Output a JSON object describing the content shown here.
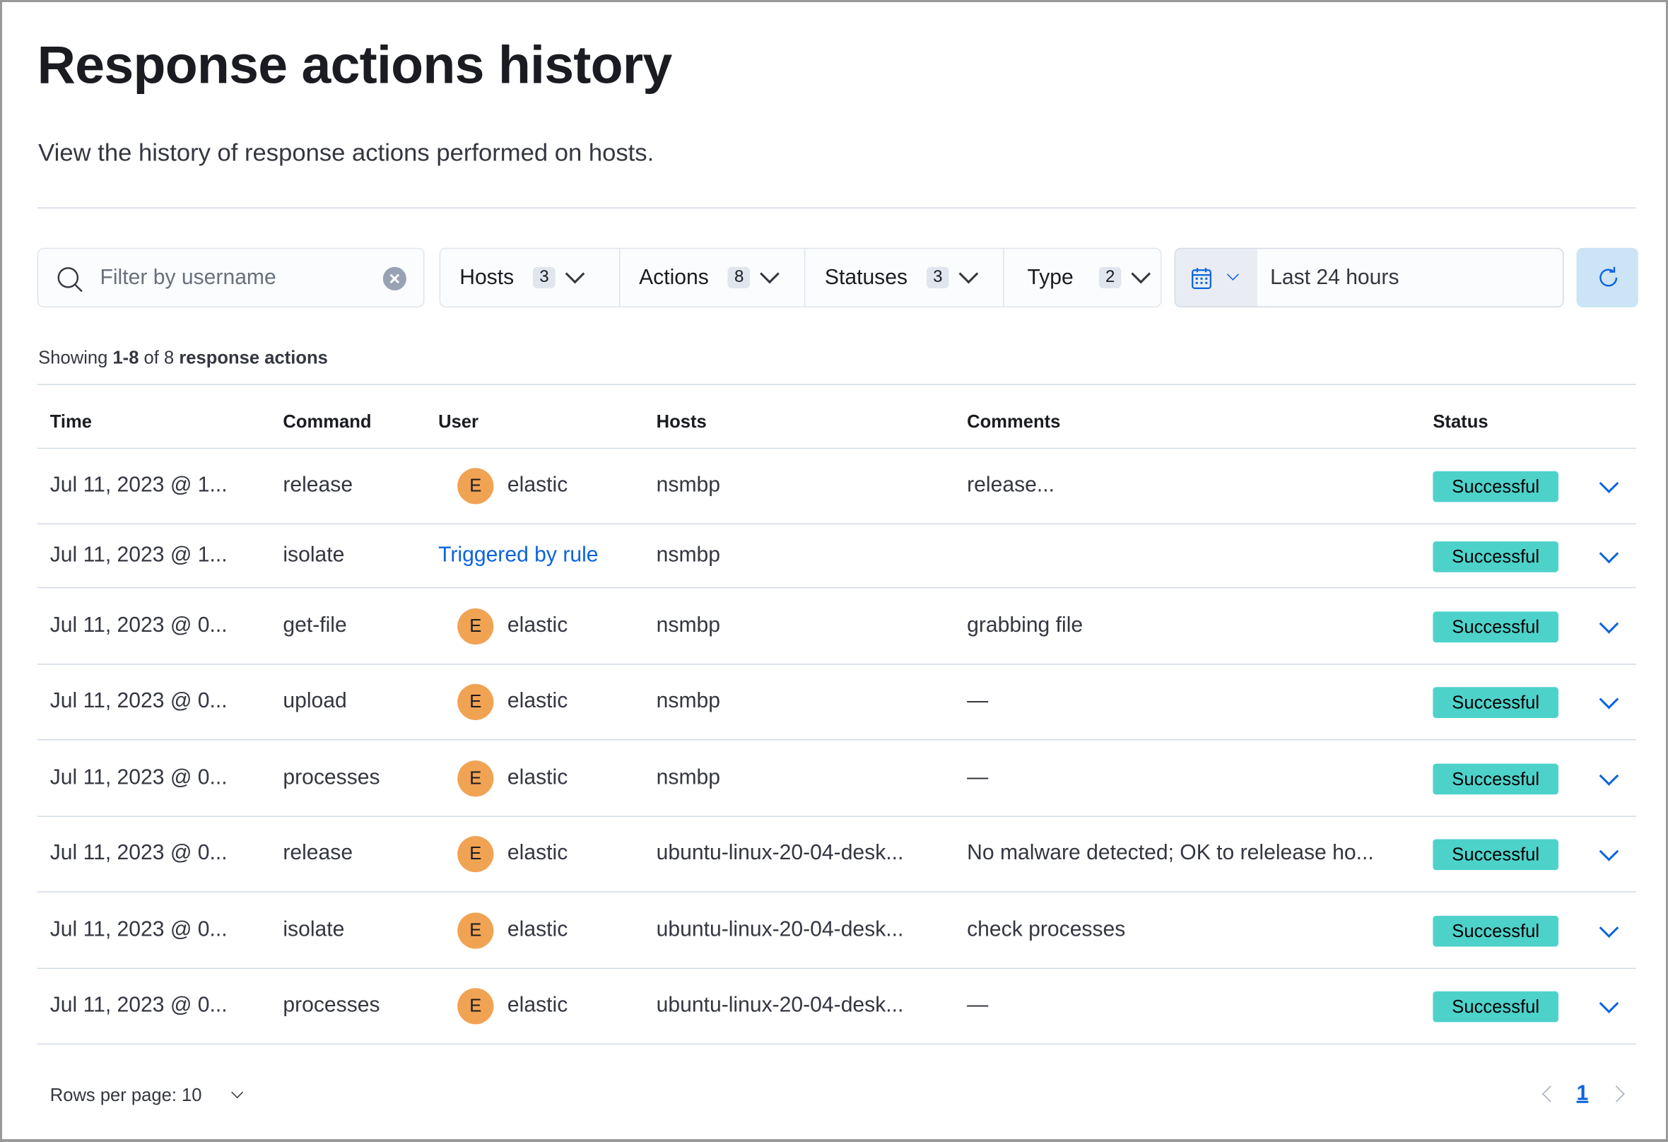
{
  "page": {
    "title": "Response actions history",
    "subtitle": "View the history of response actions performed on hosts."
  },
  "search": {
    "placeholder": "Filter by username",
    "icon": "search-icon"
  },
  "filters": [
    {
      "label": "Hosts",
      "count": "3"
    },
    {
      "label": "Actions",
      "count": "8"
    },
    {
      "label": "Statuses",
      "count": "3"
    },
    {
      "label": "Type",
      "count": "2"
    }
  ],
  "date_picker": {
    "value": "Last 24 hours",
    "icon": "calendar-icon"
  },
  "showing": {
    "prefix": "Showing ",
    "range": "1-8",
    "of": " of 8 ",
    "noun": "response actions"
  },
  "table": {
    "columns": [
      "Time",
      "Command",
      "User",
      "Hosts",
      "Comments",
      "Status"
    ],
    "rows": [
      {
        "time": "Jul 11, 2023 @ 1...",
        "command": "release",
        "avatar": "E",
        "user": "elastic",
        "host": "nsmbp",
        "comment": "release...",
        "status": "Successful"
      },
      {
        "time": "Jul 11, 2023 @ 1...",
        "command": "isolate",
        "avatar": "",
        "user": "Triggered by rule",
        "host": "nsmbp",
        "comment": "",
        "status": "Successful"
      },
      {
        "time": "Jul 11, 2023 @ 0...",
        "command": "get-file",
        "avatar": "E",
        "user": "elastic",
        "host": "nsmbp",
        "comment": "grabbing file",
        "status": "Successful"
      },
      {
        "time": "Jul 11, 2023 @ 0...",
        "command": "upload",
        "avatar": "E",
        "user": "elastic",
        "host": "nsmbp",
        "comment": "—",
        "status": "Successful"
      },
      {
        "time": "Jul 11, 2023 @ 0...",
        "command": "processes",
        "avatar": "E",
        "user": "elastic",
        "host": "nsmbp",
        "comment": "—",
        "status": "Successful"
      },
      {
        "time": "Jul 11, 2023 @ 0...",
        "command": "release",
        "avatar": "E",
        "user": "elastic",
        "host": "ubuntu-linux-20-04-desk...",
        "comment": "No malware detected; OK to relelease ho...",
        "status": "Successful"
      },
      {
        "time": "Jul 11, 2023 @ 0...",
        "command": "isolate",
        "avatar": "E",
        "user": "elastic",
        "host": "ubuntu-linux-20-04-desk...",
        "comment": "check processes",
        "status": "Successful"
      },
      {
        "time": "Jul 11, 2023 @ 0...",
        "command": "processes",
        "avatar": "E",
        "user": "elastic",
        "host": "ubuntu-linux-20-04-desk...",
        "comment": "—",
        "status": "Successful"
      }
    ]
  },
  "pagination": {
    "rows_per_page": "Rows per page: 10",
    "current_page": "1"
  },
  "colors": {
    "success": "#4dd2ca",
    "avatar": "#f1a354",
    "link": "#0b64dd"
  }
}
